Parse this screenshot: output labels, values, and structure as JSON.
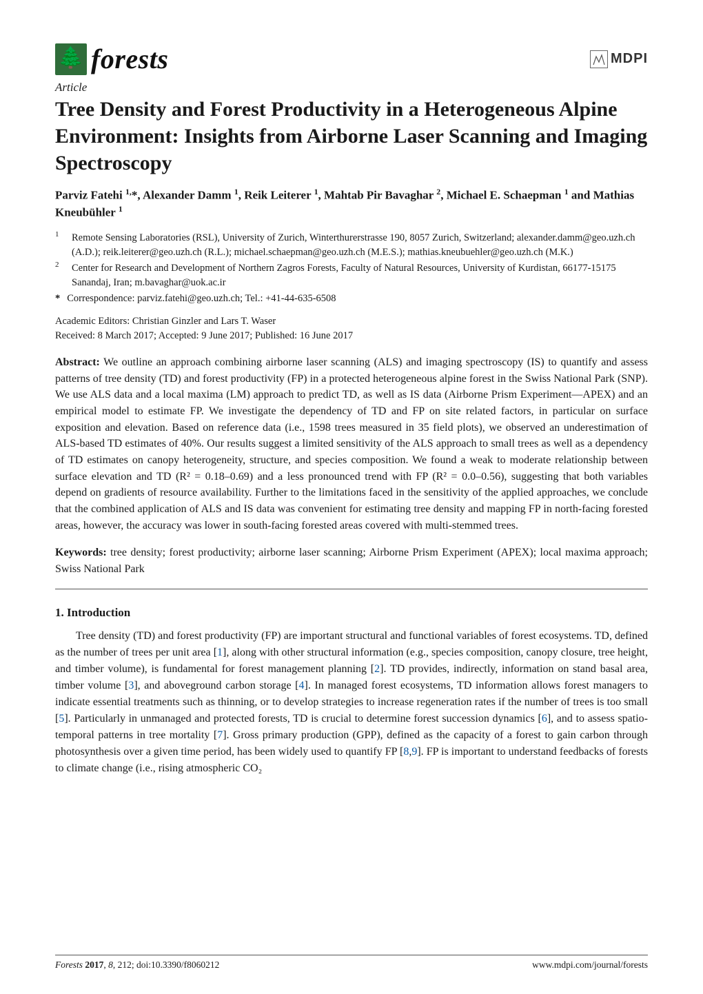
{
  "header": {
    "journal_name": "forests",
    "publisher_word": "MDPI",
    "logo_bg": "#2f6d3a",
    "logo_glyph": "🌲"
  },
  "article": {
    "type_label": "Article",
    "title": "Tree Density and Forest Productivity in a Heterogeneous Alpine Environment: Insights from Airborne Laser Scanning and Imaging Spectroscopy",
    "authors_html": "Parviz Fatehi <sup>1,</sup>*, Alexander Damm <sup>1</sup>, Reik Leiterer <sup>1</sup>, Mahtab Pir Bavaghar <sup>2</sup>, Michael E. Schaepman <sup>1</sup> and Mathias Kneubühler <sup>1</sup>"
  },
  "affiliations": [
    {
      "num": "1",
      "text": "Remote Sensing Laboratories (RSL), University of Zurich, Winterthurerstrasse 190, 8057 Zurich, Switzerland; alexander.damm@geo.uzh.ch (A.D.); reik.leiterer@geo.uzh.ch (R.L.); michael.schaepman@geo.uzh.ch (M.E.S.); mathias.kneubuehler@geo.uzh.ch (M.K.)"
    },
    {
      "num": "2",
      "text": "Center for Research and Development of Northern Zagros Forests, Faculty of Natural Resources, University of Kurdistan, 66177-15175 Sanandaj, Iran; m.bavaghar@uok.ac.ir"
    }
  ],
  "correspondence": {
    "marker": "*",
    "text": "Correspondence: parviz.fatehi@geo.uzh.ch; Tel.: +41-44-635-6508"
  },
  "editors": {
    "line1": "Academic Editors: Christian Ginzler and Lars T. Waser",
    "line2": "Received: 8 March 2017; Accepted: 9 June 2017; Published: 16 June 2017"
  },
  "abstract": {
    "label": "Abstract:",
    "text": " We outline an approach combining airborne laser scanning (ALS) and imaging spectroscopy (IS) to quantify and assess patterns of tree density (TD) and forest productivity (FP) in a protected heterogeneous alpine forest in the Swiss National Park (SNP). We use ALS data and a local maxima (LM) approach to predict TD, as well as IS data (Airborne Prism Experiment—APEX) and an empirical model to estimate FP. We investigate the dependency of TD and FP on site related factors, in particular on surface exposition and elevation. Based on reference data (i.e., 1598 trees measured in 35 field plots), we observed an underestimation of ALS-based TD estimates of 40%. Our results suggest a limited sensitivity of the ALS approach to small trees as well as a dependency of TD estimates on canopy heterogeneity, structure, and species composition. We found a weak to moderate relationship between surface elevation and TD (R² = 0.18–0.69) and a less pronounced trend with FP (R² = 0.0–0.56), suggesting that both variables depend on gradients of resource availability. Further to the limitations faced in the sensitivity of the applied approaches, we conclude that the combined application of ALS and IS data was convenient for estimating tree density and mapping FP in north-facing forested areas, however, the accuracy was lower in south-facing forested areas covered with multi-stemmed trees."
  },
  "keywords": {
    "label": "Keywords:",
    "text": " tree density; forest productivity; airborne laser scanning; Airborne Prism Experiment (APEX); local maxima approach; Swiss National Park"
  },
  "section": {
    "heading": "1. Introduction",
    "body_pre": "Tree density (TD) and forest productivity (FP) are important structural and functional variables of forest ecosystems. TD, defined as the number of trees per unit area [",
    "ref1": "1",
    "body_after_1": "], along with other structural information (e.g., species composition, canopy closure, tree height, and timber volume), is fundamental for forest management planning [",
    "ref2": "2",
    "body_after_2": "]. TD provides, indirectly, information on stand basal area, timber volume [",
    "ref3": "3",
    "body_after_3": "], and aboveground carbon storage [",
    "ref4": "4",
    "body_after_4": "]. In managed forest ecosystems, TD information allows forest managers to indicate essential treatments such as thinning, or to develop strategies to increase regeneration rates if the number of trees is too small [",
    "ref5": "5",
    "body_after_5": "]. Particularly in unmanaged and protected forests, TD is crucial to determine forest succession dynamics [",
    "ref6": "6",
    "body_after_6": "], and to assess spatio-temporal patterns in tree mortality [",
    "ref7": "7",
    "body_after_7": "]. Gross primary production (GPP), defined as the capacity of a forest to gain carbon through photosynthesis over a given time period, has been widely used to quantify FP [",
    "ref8": "8",
    "ref9": "9",
    "body_after_89": "]. FP is important to understand feedbacks of forests to climate change (i.e., rising atmospheric CO₂"
  },
  "footer": {
    "left_italic": "Forests ",
    "left_rest": "2017, 8, 212; doi:10.3390/f8060212",
    "right": "www.mdpi.com/journal/forests"
  },
  "colors": {
    "link": "#0a5aa6",
    "text": "#1a1a1a",
    "rule": "#555555",
    "logo_bg": "#2f6d3a",
    "background": "#ffffff"
  },
  "typography": {
    "title_fontsize": 30,
    "body_fontsize": 16,
    "affil_fontsize": 14.5,
    "footer_fontsize": 13.5,
    "journal_name_fontsize": 40,
    "title_fontweight": 700
  }
}
